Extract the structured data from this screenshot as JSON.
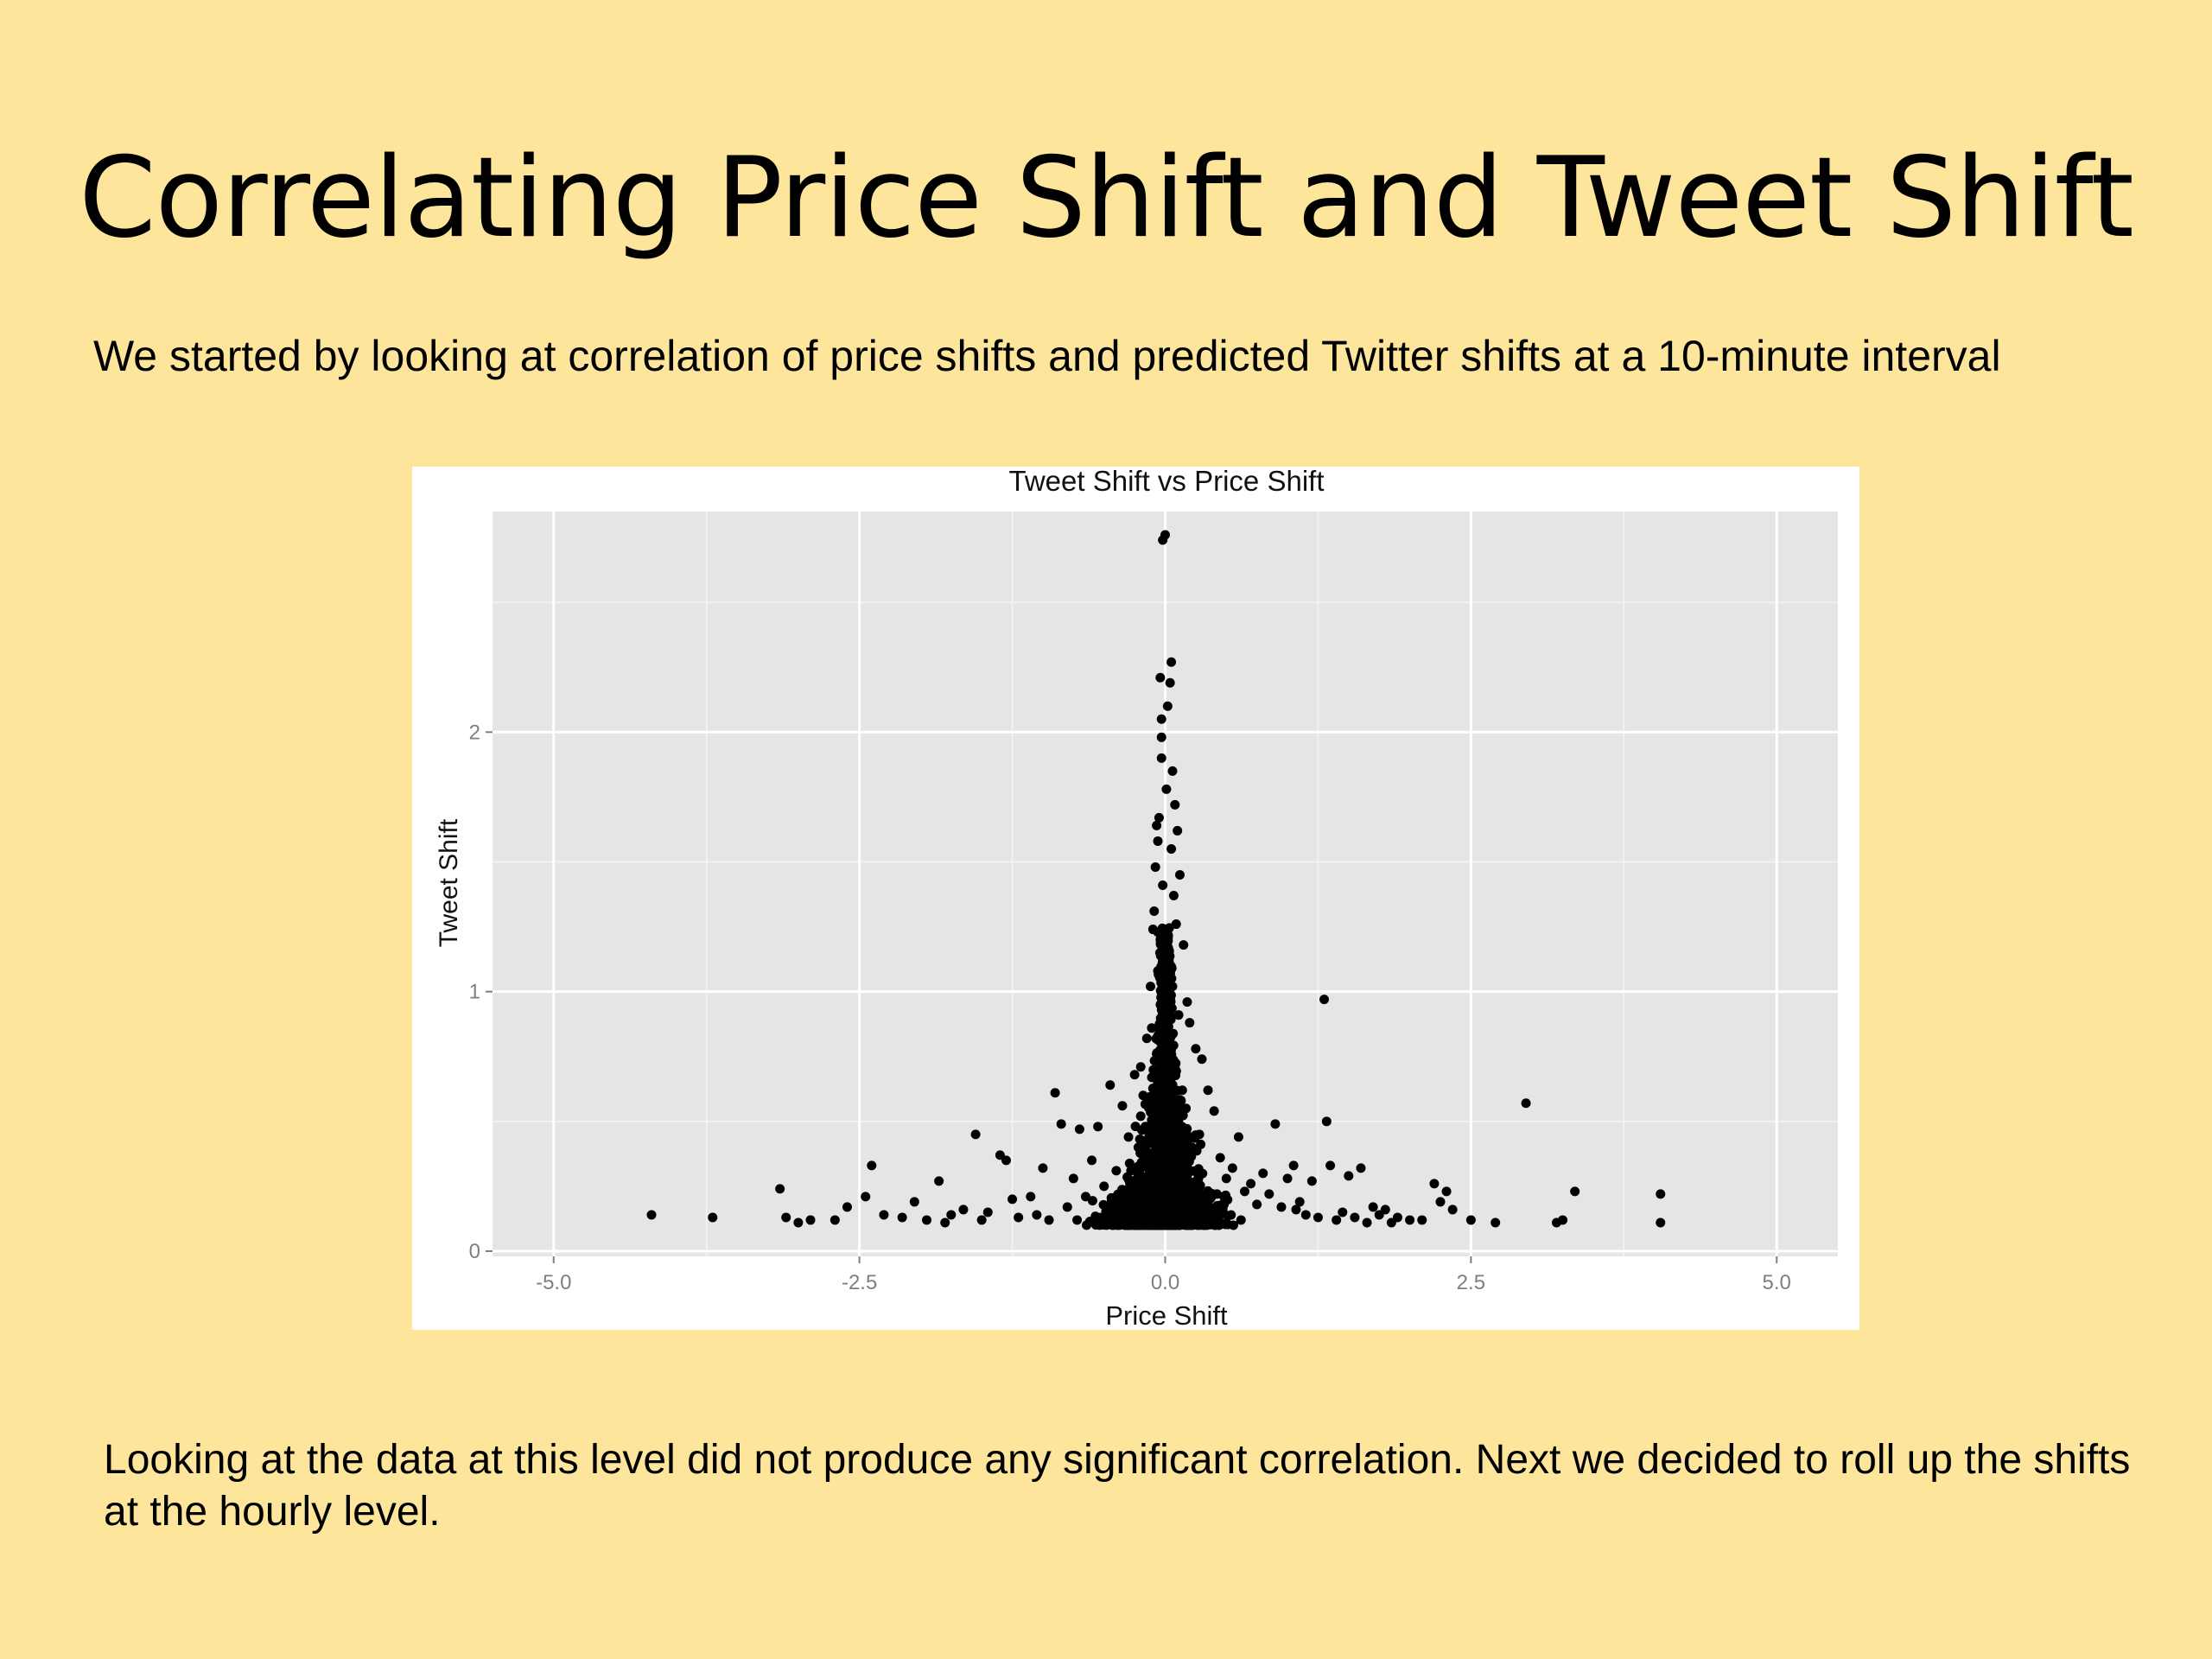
{
  "slide": {
    "title": "Correlating Price Shift and Tweet Shift",
    "intro": "We started by looking at correlation of price shifts and predicted Twitter shifts at a 10-minute interval",
    "conclusion": "Looking at the data at this level did not produce any significant correlation. Next we decided to roll up the shifts at the hourly level."
  },
  "colors": {
    "background": "#fde59b",
    "panel": "#e5e5e5",
    "grid_major": "#ffffff",
    "points": "#000000",
    "tick_text": "#7f7f7f"
  },
  "chart_data": {
    "type": "scatter",
    "title": "Tweet Shift vs Price Shift",
    "xlabel": "Price Shift",
    "ylabel": "Tweet Shift",
    "xlim": [
      -5.5,
      5.5
    ],
    "ylim": [
      -0.02,
      2.85
    ],
    "x_ticks": [
      -5.0,
      -2.5,
      0.0,
      2.5,
      5.0
    ],
    "x_tick_labels": [
      "-5.0",
      "-2.5",
      "0.0",
      "2.5",
      "5.0"
    ],
    "y_ticks": [
      0,
      1,
      2
    ],
    "y_tick_labels": [
      "0",
      "1",
      "2"
    ],
    "grid": true,
    "legend": "none",
    "series": [
      {
        "points": [
          [
            -4.2,
            0.14
          ],
          [
            -3.7,
            0.13
          ],
          [
            -3.15,
            0.24
          ],
          [
            -3.1,
            0.13
          ],
          [
            -3.0,
            0.11
          ],
          [
            -2.7,
            0.12
          ],
          [
            -2.6,
            0.17
          ],
          [
            -2.4,
            0.33
          ],
          [
            -2.45,
            0.21
          ],
          [
            -2.3,
            0.14
          ],
          [
            -2.15,
            0.13
          ],
          [
            -2.05,
            0.19
          ],
          [
            -1.95,
            0.12
          ],
          [
            -1.85,
            0.27
          ],
          [
            -1.75,
            0.14
          ],
          [
            -1.65,
            0.16
          ],
          [
            -1.55,
            0.45
          ],
          [
            -1.5,
            0.12
          ],
          [
            -1.45,
            0.15
          ],
          [
            -1.35,
            0.37
          ],
          [
            -1.3,
            0.35
          ],
          [
            -1.2,
            0.13
          ],
          [
            -1.1,
            0.21
          ],
          [
            -1.05,
            0.14
          ],
          [
            -1.0,
            0.32
          ],
          [
            -0.95,
            0.12
          ],
          [
            -0.9,
            0.61
          ],
          [
            -0.85,
            0.49
          ],
          [
            -0.8,
            0.17
          ],
          [
            -0.75,
            0.28
          ],
          [
            -0.7,
            0.47
          ],
          [
            -0.65,
            0.21
          ],
          [
            -0.6,
            0.35
          ],
          [
            -0.55,
            0.48
          ],
          [
            -0.5,
            0.25
          ],
          [
            -0.45,
            0.64
          ],
          [
            -0.4,
            0.31
          ],
          [
            -0.35,
            0.56
          ],
          [
            -0.3,
            0.44
          ],
          [
            -0.25,
            0.68
          ],
          [
            -0.2,
            0.52
          ],
          [
            -0.2,
            0.71
          ],
          [
            -0.15,
            0.82
          ],
          [
            -0.12,
            1.02
          ],
          [
            -0.1,
            1.24
          ],
          [
            -0.08,
            1.48
          ],
          [
            -0.06,
            1.58
          ],
          [
            -0.05,
            1.67
          ],
          [
            -0.04,
            2.21
          ],
          [
            -0.03,
            2.05
          ],
          [
            -0.03,
            1.98
          ],
          [
            -0.02,
            2.74
          ],
          [
            0.0,
            2.76
          ],
          [
            0.02,
            2.1
          ],
          [
            0.04,
            2.19
          ],
          [
            0.05,
            2.27
          ],
          [
            0.06,
            1.85
          ],
          [
            0.08,
            1.72
          ],
          [
            0.1,
            1.62
          ],
          [
            0.12,
            1.45
          ],
          [
            0.15,
            1.18
          ],
          [
            0.18,
            0.96
          ],
          [
            0.2,
            0.88
          ],
          [
            0.25,
            0.78
          ],
          [
            0.3,
            0.74
          ],
          [
            0.35,
            0.62
          ],
          [
            0.4,
            0.54
          ],
          [
            0.45,
            0.36
          ],
          [
            0.5,
            0.28
          ],
          [
            0.55,
            0.32
          ],
          [
            0.6,
            0.44
          ],
          [
            0.65,
            0.23
          ],
          [
            0.7,
            0.26
          ],
          [
            0.75,
            0.18
          ],
          [
            0.8,
            0.3
          ],
          [
            0.85,
            0.22
          ],
          [
            0.9,
            0.49
          ],
          [
            0.95,
            0.17
          ],
          [
            1.0,
            0.28
          ],
          [
            1.05,
            0.33
          ],
          [
            1.1,
            0.19
          ],
          [
            1.15,
            0.14
          ],
          [
            1.2,
            0.27
          ],
          [
            1.25,
            0.13
          ],
          [
            1.3,
            0.97
          ],
          [
            1.32,
            0.5
          ],
          [
            1.35,
            0.33
          ],
          [
            1.4,
            0.12
          ],
          [
            1.45,
            0.15
          ],
          [
            1.5,
            0.29
          ],
          [
            1.55,
            0.13
          ],
          [
            1.6,
            0.32
          ],
          [
            1.65,
            0.11
          ],
          [
            1.7,
            0.17
          ],
          [
            1.75,
            0.14
          ],
          [
            1.8,
            0.16
          ],
          [
            1.85,
            0.11
          ],
          [
            1.9,
            0.13
          ],
          [
            2.0,
            0.12
          ],
          [
            2.1,
            0.12
          ],
          [
            2.2,
            0.26
          ],
          [
            2.25,
            0.19
          ],
          [
            2.3,
            0.23
          ],
          [
            2.35,
            0.16
          ],
          [
            2.5,
            0.12
          ],
          [
            2.7,
            0.11
          ],
          [
            2.95,
            0.57
          ],
          [
            3.2,
            0.11
          ],
          [
            3.25,
            0.12
          ],
          [
            3.35,
            0.23
          ],
          [
            4.05,
            0.22
          ],
          [
            4.05,
            0.11
          ],
          [
            1.07,
            0.16
          ],
          [
            -1.25,
            0.2
          ],
          [
            -2.9,
            0.12
          ],
          [
            -1.8,
            0.11
          ],
          [
            -0.72,
            0.12
          ],
          [
            0.62,
            0.12
          ],
          [
            0.48,
            0.21
          ],
          [
            -0.38,
            0.22
          ],
          [
            0.28,
            0.45
          ],
          [
            -0.28,
            0.31
          ],
          [
            0.33,
            0.19
          ],
          [
            -0.18,
            0.6
          ],
          [
            0.14,
            0.62
          ],
          [
            0.22,
            0.4
          ],
          [
            0.17,
            0.55
          ],
          [
            -0.22,
            0.4
          ],
          [
            0.38,
            0.14
          ],
          [
            -0.44,
            0.19
          ],
          [
            -0.03,
            1.9
          ],
          [
            0.01,
            1.78
          ],
          [
            -0.07,
            1.64
          ],
          [
            0.05,
            1.55
          ],
          [
            -0.02,
            1.41
          ],
          [
            0.07,
            1.37
          ],
          [
            -0.09,
            1.31
          ],
          [
            0.09,
            1.26
          ],
          [
            -0.04,
            1.2
          ],
          [
            0.03,
            1.13
          ],
          [
            -0.06,
            1.08
          ],
          [
            0.06,
            1.02
          ],
          [
            -0.02,
            0.97
          ],
          [
            0.11,
            0.91
          ],
          [
            -0.11,
            0.86
          ],
          [
            0.02,
            0.81
          ],
          [
            -0.07,
            0.76
          ],
          [
            0.08,
            0.71
          ],
          [
            -0.01,
            0.66
          ],
          [
            0.13,
            0.58
          ]
        ]
      }
    ]
  }
}
